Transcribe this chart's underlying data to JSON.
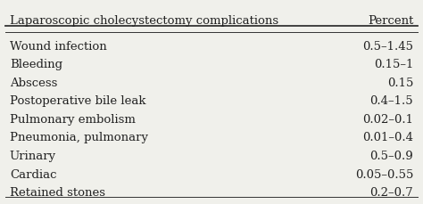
{
  "header_col1": "Laparoscopic cholecystectomy complications",
  "header_col2": "Percent",
  "rows": [
    [
      "Wound infection",
      "0.5–1.45"
    ],
    [
      "Bleeding",
      "0.15–1"
    ],
    [
      "Abscess",
      "0.15"
    ],
    [
      "Postoperative bile leak",
      "0.4–1.5"
    ],
    [
      "Pulmonary embolism",
      "0.02–0.1"
    ],
    [
      "Pneumonia, pulmonary",
      "0.01–0.4"
    ],
    [
      "Urinary",
      "0.5–0.9"
    ],
    [
      "Cardiac",
      "0.05–0.55"
    ],
    [
      "Retained stones",
      "0.2–0.7"
    ]
  ],
  "bg_color": "#f0f0eb",
  "header_fontsize": 9.5,
  "row_fontsize": 9.5,
  "text_color": "#222222"
}
